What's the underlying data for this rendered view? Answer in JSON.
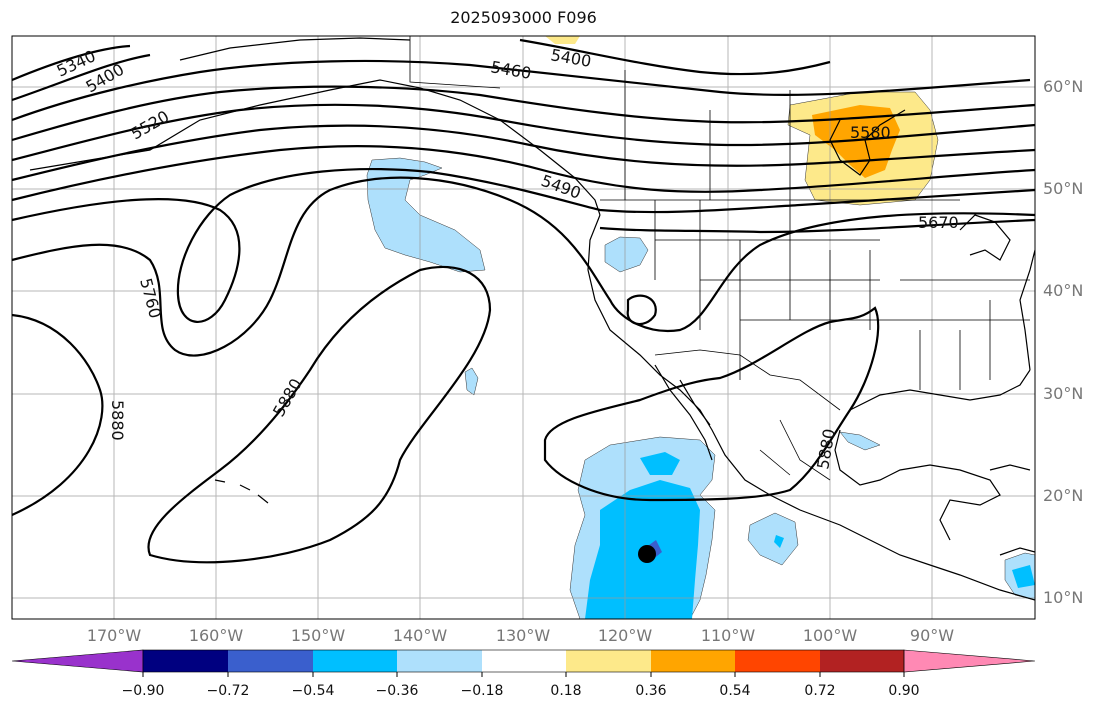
{
  "title": "2025093000 F096",
  "map": {
    "region": "North Pacific / North America",
    "lon_range": [
      -180,
      -80
    ],
    "lat_range": [
      8,
      65
    ],
    "lon_ticks": [
      "170°W",
      "160°W",
      "150°W",
      "140°W",
      "130°W",
      "120°W",
      "110°W",
      "100°W",
      "90°W"
    ],
    "lat_ticks": [
      "60°N",
      "50°N",
      "40°N",
      "30°N",
      "20°N",
      "10°N"
    ],
    "gridlines": true,
    "contour_labels": [
      "5340",
      "5400",
      "5400",
      "5460",
      "5520",
      "5490",
      "5580",
      "5670",
      "5760",
      "5880",
      "5880",
      "5880"
    ],
    "filled_field_colors": {
      "-0.36": "#aee0fc",
      "-0.54": "#00bfff",
      "-0.72": "#3a5fcd",
      "0.18": "#fde98a",
      "0.36": "#ffa500"
    },
    "storm_marker": "black-dot"
  },
  "colorbar": {
    "tick_labels": [
      "−0.90",
      "−0.72",
      "−0.54",
      "−0.36",
      "−0.18",
      "0.18",
      "0.36",
      "0.54",
      "0.72",
      "0.90"
    ],
    "colors": [
      "#9932cc",
      "#000080",
      "#3a5fcd",
      "#00bfff",
      "#aee0fc",
      "#ffffff",
      "#fde98a",
      "#ffa500",
      "#ff4500",
      "#b22222",
      "#ff89b4"
    ],
    "extend": "both"
  }
}
